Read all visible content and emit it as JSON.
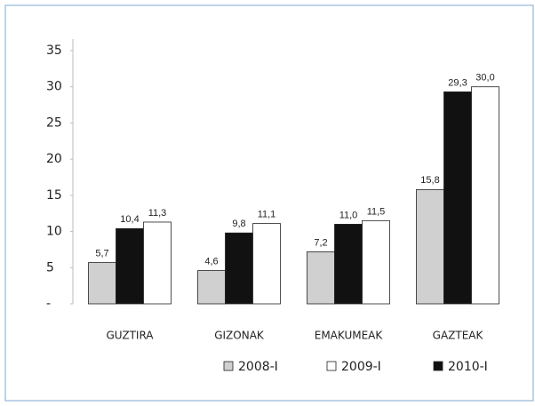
{
  "chart_data": {
    "type": "bar",
    "categories": [
      "GUZTIRA",
      "GIZONAK",
      "EMAKUMEAK",
      "GAZTEAK"
    ],
    "series": [
      {
        "name": "2008-I",
        "color": "#d0d0d0",
        "values": [
          5.7,
          4.6,
          7.2,
          15.8
        ],
        "value_labels": [
          "5,7",
          "4,6",
          "7,2",
          "15,8"
        ]
      },
      {
        "name": "2010-I",
        "color": "#111111",
        "values": [
          10.4,
          9.8,
          11.0,
          29.3
        ],
        "value_labels": [
          "10,4",
          "9,8",
          "11,0",
          "29,3"
        ]
      },
      {
        "name": "2009-I",
        "color": "#ffffff",
        "values": [
          11.3,
          11.1,
          11.5,
          30.0
        ],
        "value_labels": [
          "11,3",
          "11,1",
          "11,5",
          "30,0"
        ]
      }
    ],
    "ylim": [
      0,
      35
    ],
    "yticks": [
      {
        "value": 0,
        "label": "-"
      },
      5,
      10,
      15,
      20,
      25,
      30,
      35
    ]
  }
}
